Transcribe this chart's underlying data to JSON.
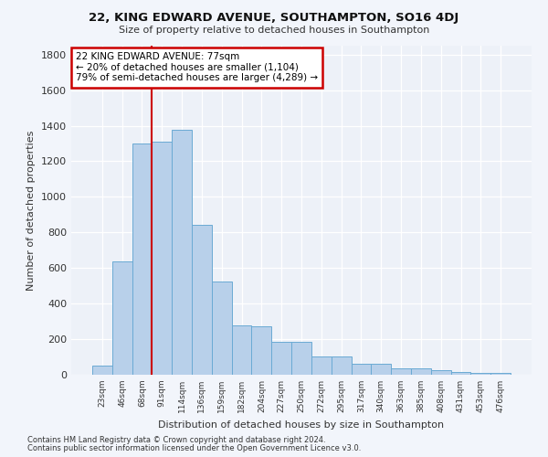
{
  "title1": "22, KING EDWARD AVENUE, SOUTHAMPTON, SO16 4DJ",
  "title2": "Size of property relative to detached houses in Southampton",
  "xlabel": "Distribution of detached houses by size in Southampton",
  "ylabel": "Number of detached properties",
  "bar_labels": [
    "23sqm",
    "46sqm",
    "68sqm",
    "91sqm",
    "114sqm",
    "136sqm",
    "159sqm",
    "182sqm",
    "204sqm",
    "227sqm",
    "250sqm",
    "272sqm",
    "295sqm",
    "317sqm",
    "340sqm",
    "363sqm",
    "385sqm",
    "408sqm",
    "431sqm",
    "453sqm",
    "476sqm"
  ],
  "bar_values": [
    50,
    635,
    1300,
    1310,
    1375,
    845,
    525,
    275,
    270,
    185,
    185,
    105,
    105,
    60,
    60,
    38,
    38,
    28,
    15,
    10,
    10
  ],
  "bar_color": "#b8d0ea",
  "bar_edge_color": "#6aaad4",
  "red_line_x": 2.5,
  "annotation_line1": "22 KING EDWARD AVENUE: 77sqm",
  "annotation_line2": "← 20% of detached houses are smaller (1,104)",
  "annotation_line3": "79% of semi-detached houses are larger (4,289) →",
  "annotation_box_facecolor": "#ffffff",
  "annotation_box_edgecolor": "#cc0000",
  "footnote1": "Contains HM Land Registry data © Crown copyright and database right 2024.",
  "footnote2": "Contains public sector information licensed under the Open Government Licence v3.0.",
  "ylim": [
    0,
    1850
  ],
  "yticks": [
    0,
    200,
    400,
    600,
    800,
    1000,
    1200,
    1400,
    1600,
    1800
  ],
  "bg_color": "#f2f5fb",
  "plot_bg": "#edf1f8"
}
